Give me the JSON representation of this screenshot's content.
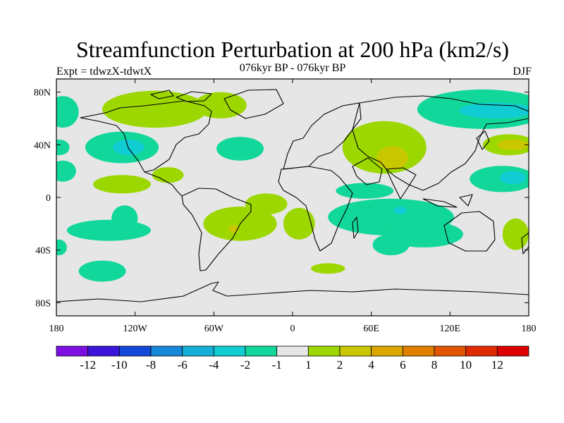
{
  "title": "Streamfunction Perturbation at 200 hPa (km2/s)",
  "subtitle": "076kyr BP - 076kyr BP",
  "expt_label": "Expt = tdwzX-tdwtX",
  "season": "DJF",
  "chart_data": {
    "type": "heatmap",
    "x_ticks": [
      {
        "value": -180,
        "label": "180"
      },
      {
        "value": -120,
        "label": "120W"
      },
      {
        "value": -60,
        "label": "60W"
      },
      {
        "value": 0,
        "label": "0"
      },
      {
        "value": 60,
        "label": "60E"
      },
      {
        "value": 120,
        "label": "120E"
      },
      {
        "value": 180,
        "label": "180"
      }
    ],
    "y_ticks": [
      {
        "value": 80,
        "label": "80N"
      },
      {
        "value": 40,
        "label": "40N"
      },
      {
        "value": 0,
        "label": "0"
      },
      {
        "value": -40,
        "label": "40S"
      },
      {
        "value": -80,
        "label": "80S"
      }
    ],
    "xlim": [
      -180,
      180
    ],
    "ylim": [
      -90,
      90
    ],
    "colorbar": {
      "labels": [
        "-12",
        "-10",
        "-8",
        "-6",
        "-4",
        "-2",
        "-1",
        "1",
        "2",
        "4",
        "6",
        "8",
        "10",
        "12"
      ],
      "colors": [
        "#7d0fe3",
        "#3a14d9",
        "#1448d6",
        "#1587d8",
        "#13afd6",
        "#10cdd4",
        "#12d79a",
        "#e6e6e6",
        "#9cd700",
        "#c9c800",
        "#dba700",
        "#e07e00",
        "#e15500",
        "#df2a00",
        "#dd0000"
      ]
    },
    "background_color": "#e6e6e6",
    "regions": [
      {
        "level": "-1",
        "color": "#12d79a",
        "lon": -175,
        "lat": 65,
        "rlon": 12,
        "rlat": 12
      },
      {
        "level": "-1",
        "color": "#12d79a",
        "lon": -178,
        "lat": 38,
        "rlon": 8,
        "rlat": 6
      },
      {
        "level": "-1",
        "color": "#12d79a",
        "lon": -175,
        "lat": 20,
        "rlon": 10,
        "rlat": 8
      },
      {
        "level": "-1",
        "color": "#12d79a",
        "lon": -130,
        "lat": 38,
        "rlon": 28,
        "rlat": 12
      },
      {
        "level": "-2",
        "color": "#10cdd4",
        "lon": -125,
        "lat": 38,
        "rlon": 12,
        "rlat": 6
      },
      {
        "level": "-1",
        "color": "#12d79a",
        "lon": -40,
        "lat": 37,
        "rlon": 18,
        "rlat": 9
      },
      {
        "level": "-1",
        "color": "#12d79a",
        "lon": -140,
        "lat": -25,
        "rlon": 32,
        "rlat": 8
      },
      {
        "level": "-1",
        "color": "#12d79a",
        "lon": -128,
        "lat": -16,
        "rlon": 10,
        "rlat": 10
      },
      {
        "level": "-1",
        "color": "#12d79a",
        "lon": -145,
        "lat": -56,
        "rlon": 18,
        "rlat": 8
      },
      {
        "level": "-1",
        "color": "#12d79a",
        "lon": -178,
        "lat": -38,
        "rlon": 6,
        "rlat": 6
      },
      {
        "level": "-1",
        "color": "#12d79a",
        "lon": 145,
        "lat": 67,
        "rlon": 50,
        "rlat": 15
      },
      {
        "level": "-2",
        "color": "#10cdd4",
        "lon": 155,
        "lat": 66,
        "rlon": 28,
        "rlat": 6
      },
      {
        "level": "-1",
        "color": "#12d79a",
        "lon": 160,
        "lat": 14,
        "rlon": 25,
        "rlat": 10
      },
      {
        "level": "-2",
        "color": "#10cdd4",
        "lon": 168,
        "lat": 15,
        "rlon": 10,
        "rlat": 5
      },
      {
        "level": "-1",
        "color": "#12d79a",
        "lon": 75,
        "lat": -15,
        "rlon": 48,
        "rlat": 14
      },
      {
        "level": "-1",
        "color": "#12d79a",
        "lon": 55,
        "lat": 5,
        "rlon": 22,
        "rlat": 6
      },
      {
        "level": "-1",
        "color": "#12d79a",
        "lon": 100,
        "lat": -28,
        "rlon": 30,
        "rlat": 10
      },
      {
        "level": "-1",
        "color": "#12d79a",
        "lon": 75,
        "lat": -36,
        "rlon": 14,
        "rlat": 8
      },
      {
        "level": "-2",
        "color": "#10cdd4",
        "lon": 82,
        "lat": -10,
        "rlon": 5,
        "rlat": 3
      },
      {
        "level": "1",
        "color": "#9cd700",
        "lon": -105,
        "lat": 67,
        "rlon": 40,
        "rlat": 14
      },
      {
        "level": "1",
        "color": "#9cd700",
        "lon": -55,
        "lat": 70,
        "rlon": 20,
        "rlat": 10
      },
      {
        "level": "1",
        "color": "#9cd700",
        "lon": -130,
        "lat": 10,
        "rlon": 22,
        "rlat": 7
      },
      {
        "level": "1",
        "color": "#9cd700",
        "lon": -95,
        "lat": 17,
        "rlon": 12,
        "rlat": 6
      },
      {
        "level": "1",
        "color": "#9cd700",
        "lon": -20,
        "lat": -5,
        "rlon": 16,
        "rlat": 8
      },
      {
        "level": "1",
        "color": "#9cd700",
        "lon": -40,
        "lat": -20,
        "rlon": 28,
        "rlat": 13
      },
      {
        "level": "1",
        "color": "#9cd700",
        "lon": 5,
        "lat": -20,
        "rlon": 12,
        "rlat": 12
      },
      {
        "level": "2",
        "color": "#c9c800",
        "lon": -45,
        "lat": -24,
        "rlon": 4,
        "rlat": 3
      },
      {
        "level": "1",
        "color": "#9cd700",
        "lon": 70,
        "lat": 38,
        "rlon": 32,
        "rlat": 20
      },
      {
        "level": "2",
        "color": "#c9c800",
        "lon": 76,
        "lat": 30,
        "rlon": 12,
        "rlat": 9
      },
      {
        "level": "1",
        "color": "#9cd700",
        "lon": 165,
        "lat": 40,
        "rlon": 20,
        "rlat": 8
      },
      {
        "level": "2",
        "color": "#c9c800",
        "lon": 168,
        "lat": 40,
        "rlon": 12,
        "rlat": 4
      },
      {
        "level": "1",
        "color": "#9cd700",
        "lon": 170,
        "lat": -28,
        "rlon": 10,
        "rlat": 12
      },
      {
        "level": "1",
        "color": "#9cd700",
        "lon": 27,
        "lat": -54,
        "rlon": 13,
        "rlat": 4
      }
    ]
  }
}
